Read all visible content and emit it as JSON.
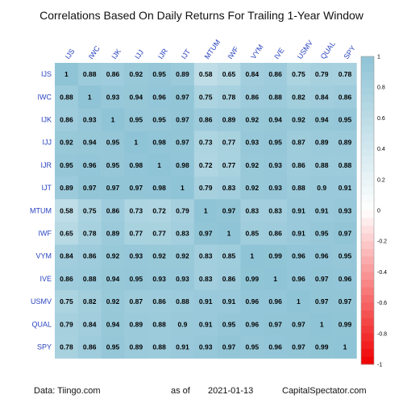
{
  "chart_data": {
    "type": "heatmap",
    "title": "Correlations Based On Daily Returns For Trailing 1-Year Window",
    "labels": [
      "IJS",
      "IWC",
      "IJK",
      "IJJ",
      "IJR",
      "IJT",
      "MTUM",
      "IWF",
      "VYM",
      "IVE",
      "USMV",
      "QUAL",
      "SPY"
    ],
    "matrix": [
      [
        1,
        0.88,
        0.86,
        0.92,
        0.95,
        0.89,
        0.58,
        0.65,
        0.84,
        0.86,
        0.75,
        0.79,
        0.78
      ],
      [
        0.88,
        1,
        0.93,
        0.94,
        0.96,
        0.97,
        0.75,
        0.78,
        0.86,
        0.88,
        0.82,
        0.84,
        0.86
      ],
      [
        0.86,
        0.93,
        1,
        0.95,
        0.95,
        0.97,
        0.86,
        0.89,
        0.92,
        0.94,
        0.92,
        0.94,
        0.95
      ],
      [
        0.92,
        0.94,
        0.95,
        1,
        0.98,
        0.97,
        0.73,
        0.77,
        0.93,
        0.95,
        0.87,
        0.89,
        0.89
      ],
      [
        0.95,
        0.96,
        0.95,
        0.98,
        1,
        0.98,
        0.72,
        0.77,
        0.92,
        0.93,
        0.86,
        0.88,
        0.88
      ],
      [
        0.89,
        0.97,
        0.97,
        0.97,
        0.98,
        1,
        0.79,
        0.83,
        0.92,
        0.93,
        0.88,
        0.9,
        0.91
      ],
      [
        0.58,
        0.75,
        0.86,
        0.73,
        0.72,
        0.79,
        1,
        0.97,
        0.83,
        0.83,
        0.91,
        0.91,
        0.93
      ],
      [
        0.65,
        0.78,
        0.89,
        0.77,
        0.77,
        0.83,
        0.97,
        1,
        0.85,
        0.86,
        0.91,
        0.95,
        0.97
      ],
      [
        0.84,
        0.86,
        0.92,
        0.93,
        0.92,
        0.92,
        0.83,
        0.85,
        1,
        0.99,
        0.96,
        0.96,
        0.95
      ],
      [
        0.86,
        0.88,
        0.94,
        0.95,
        0.93,
        0.93,
        0.83,
        0.86,
        0.99,
        1,
        0.96,
        0.97,
        0.96
      ],
      [
        0.75,
        0.82,
        0.92,
        0.87,
        0.86,
        0.88,
        0.91,
        0.91,
        0.96,
        0.96,
        1,
        0.97,
        0.97
      ],
      [
        0.79,
        0.84,
        0.94,
        0.89,
        0.88,
        0.9,
        0.91,
        0.95,
        0.96,
        0.97,
        0.97,
        1,
        0.99
      ],
      [
        0.78,
        0.86,
        0.95,
        0.89,
        0.88,
        0.91,
        0.93,
        0.97,
        0.95,
        0.96,
        0.97,
        0.99,
        1
      ]
    ],
    "colorbar": {
      "range": [
        -1,
        1
      ],
      "ticks": [
        1,
        0.8,
        0.6,
        0.4,
        0.2,
        0,
        -0.2,
        -0.4,
        -0.6,
        -0.8,
        -1
      ],
      "tick_labels": [
        "1",
        "0.8",
        "0.6",
        "0.4",
        "0.2",
        "0",
        "-0.2",
        "-0.4",
        "-0.6",
        "-0.8",
        "-1"
      ],
      "positive_color": "#8fc4d6",
      "negative_color": "#f00000"
    }
  },
  "footer": {
    "source": "Data: Tiingo.com",
    "as_of_label": "as of",
    "date": "2021-01-13",
    "site": "CapitalSpectator.com"
  }
}
